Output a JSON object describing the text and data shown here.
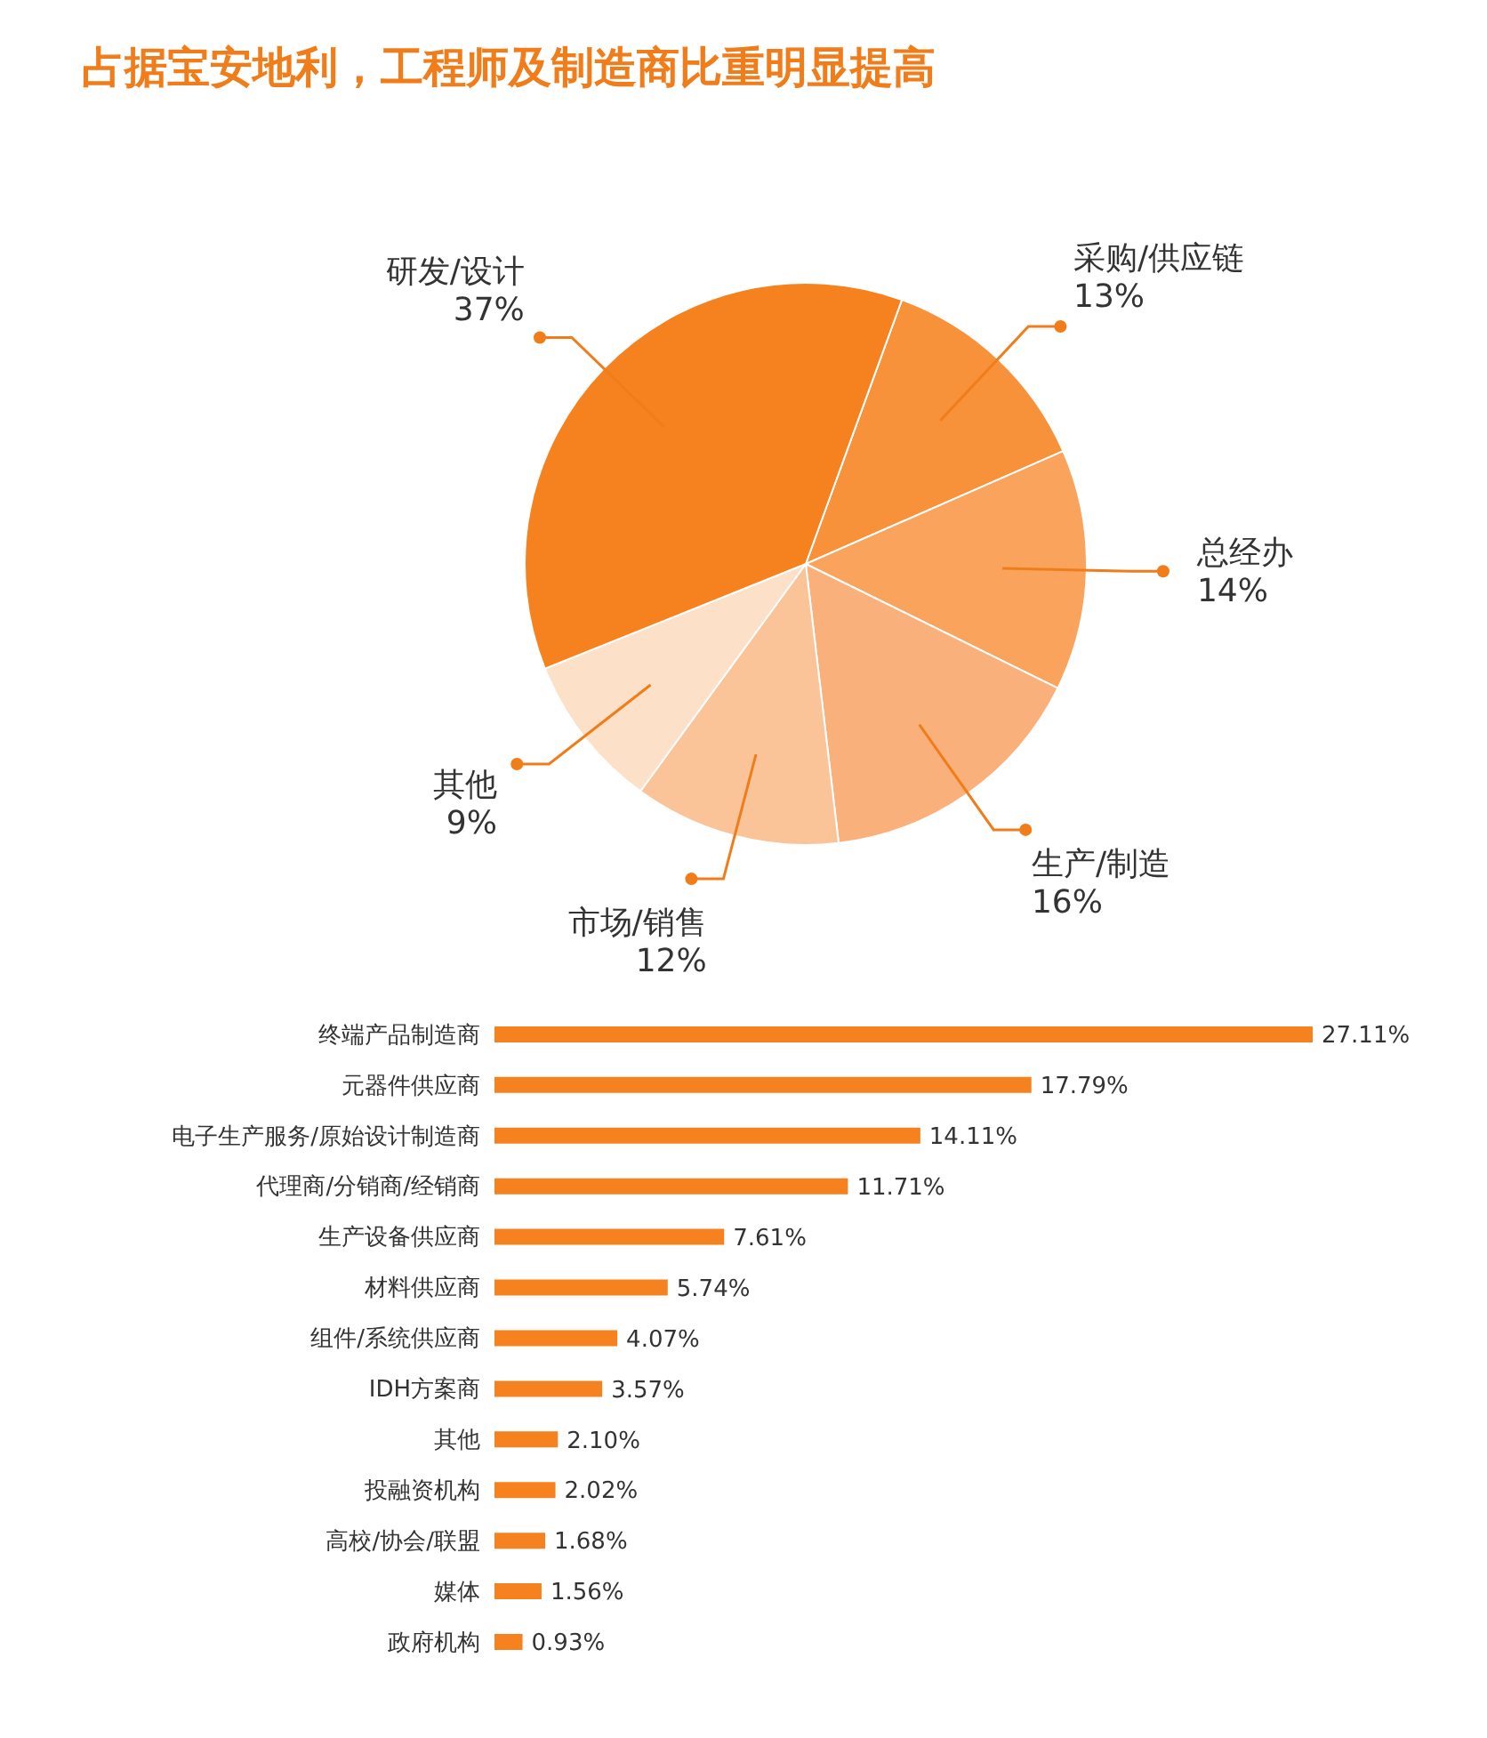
{
  "chart_data": [
    {
      "type": "pie",
      "title": "占据宝安地利，工程师及制造商比重明显提高",
      "categories": [
        "采购/供应链",
        "总经办",
        "生产/制造",
        "市场/销售",
        "其他",
        "研发/设计"
      ],
      "values": [
        13,
        14,
        16,
        12,
        9,
        37
      ],
      "value_labels": [
        "13%",
        "14%",
        "16%",
        "12%",
        "9%",
        "37%"
      ],
      "colors": [
        "#f7913a",
        "#f9a35d",
        "#fab07a",
        "#fbc398",
        "#fde0c8",
        "#f5821f"
      ]
    },
    {
      "type": "bar",
      "orientation": "horizontal",
      "categories": [
        "终端产品制造商",
        "元器件供应商",
        "电子生产服务/原始设计制造商",
        "代理商/分销商/经销商",
        "生产设备供应商",
        "材料供应商",
        "组件/系统供应商",
        "IDH方案商",
        "其他",
        "投融资机构",
        "高校/协会/联盟",
        "媒体",
        "政府机构"
      ],
      "values": [
        27.11,
        17.79,
        14.11,
        11.71,
        7.61,
        5.74,
        4.07,
        3.57,
        2.1,
        2.02,
        1.68,
        1.56,
        0.93
      ],
      "value_labels": [
        "27.11%",
        "17.79%",
        "14.11%",
        "11.71%",
        "7.61%",
        "5.74%",
        "4.07%",
        "3.57%",
        "2.10%",
        "2.02%",
        "1.68%",
        "1.56%",
        "0.93%"
      ],
      "color": "#f5821f"
    }
  ]
}
